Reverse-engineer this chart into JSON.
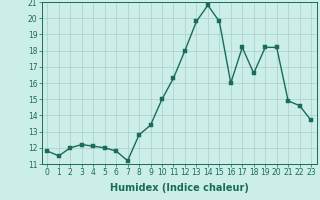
{
  "x_values": [
    0,
    1,
    2,
    3,
    4,
    5,
    6,
    7,
    8,
    9,
    10,
    11,
    12,
    13,
    14,
    15,
    16,
    17,
    18,
    19,
    20,
    21,
    22,
    23
  ],
  "y_values": [
    11.8,
    11.5,
    12.0,
    12.2,
    12.1,
    12.0,
    11.8,
    11.2,
    12.8,
    13.4,
    15.0,
    16.3,
    18.0,
    19.8,
    20.8,
    19.8,
    16.0,
    18.2,
    16.6,
    18.2,
    18.2,
    14.9,
    14.6,
    13.7
  ],
  "line_color": "#1a6b5a",
  "marker_color": "#1a6b5a",
  "bg_color": "#cceee8",
  "grid_color": "#aacccc",
  "xlabel": "Humidex (Indice chaleur)",
  "ylim": [
    11,
    21
  ],
  "xlim_min": -0.5,
  "xlim_max": 23.5,
  "yticks": [
    11,
    12,
    13,
    14,
    15,
    16,
    17,
    18,
    19,
    20,
    21
  ],
  "xticks": [
    0,
    1,
    2,
    3,
    4,
    5,
    6,
    7,
    8,
    9,
    10,
    11,
    12,
    13,
    14,
    15,
    16,
    17,
    18,
    19,
    20,
    21,
    22,
    23
  ],
  "tick_label_fontsize": 5.5,
  "xlabel_fontsize": 7,
  "line_width": 1.0,
  "marker_size": 2.5
}
